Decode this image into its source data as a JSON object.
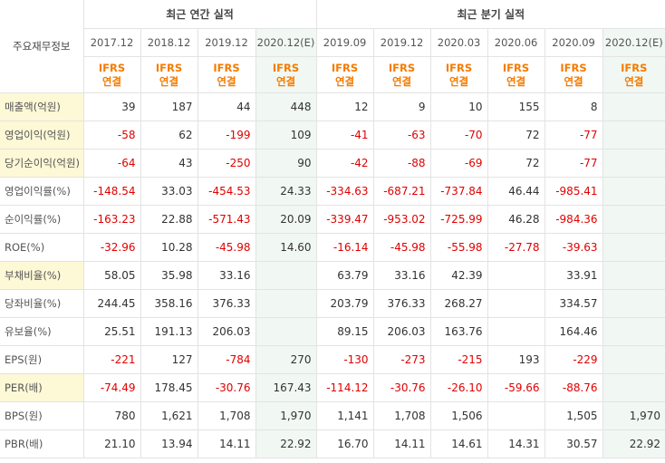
{
  "header": {
    "corner_label": "주요재무정보",
    "annual_title": "최근 연간 실적",
    "quarter_title": "최근 분기 실적",
    "periods": [
      "2017.12",
      "2018.12",
      "2019.12",
      "2020.12(E)",
      "2019.09",
      "2019.12",
      "2020.03",
      "2020.06",
      "2020.09",
      "2020.12(E)"
    ],
    "ifrs_line1": "IFRS",
    "ifrs_line2": "연결"
  },
  "rows": [
    {
      "label": "매출액(억원)",
      "highlight": true,
      "values": [
        "39",
        "187",
        "44",
        "448",
        "12",
        "9",
        "10",
        "155",
        "8",
        ""
      ]
    },
    {
      "label": "영업이익(억원)",
      "highlight": true,
      "values": [
        "-58",
        "62",
        "-199",
        "109",
        "-41",
        "-63",
        "-70",
        "72",
        "-77",
        ""
      ]
    },
    {
      "label": "당기순이익(억원)",
      "highlight": true,
      "values": [
        "-64",
        "43",
        "-250",
        "90",
        "-42",
        "-88",
        "-69",
        "72",
        "-77",
        ""
      ]
    },
    {
      "label": "영업이익률(%)",
      "highlight": false,
      "values": [
        "-148.54",
        "33.03",
        "-454.53",
        "24.33",
        "-334.63",
        "-687.21",
        "-737.84",
        "46.44",
        "-985.41",
        ""
      ]
    },
    {
      "label": "순이익률(%)",
      "highlight": false,
      "values": [
        "-163.23",
        "22.88",
        "-571.43",
        "20.09",
        "-339.47",
        "-953.02",
        "-725.99",
        "46.28",
        "-984.36",
        ""
      ]
    },
    {
      "label": "ROE(%)",
      "highlight": false,
      "values": [
        "-32.96",
        "10.28",
        "-45.98",
        "14.60",
        "-16.14",
        "-45.98",
        "-55.98",
        "-27.78",
        "-39.63",
        ""
      ]
    },
    {
      "label": "부채비율(%)",
      "highlight": true,
      "values": [
        "58.05",
        "35.98",
        "33.16",
        "",
        "63.79",
        "33.16",
        "42.39",
        "",
        "33.91",
        ""
      ]
    },
    {
      "label": "당좌비율(%)",
      "highlight": false,
      "values": [
        "244.45",
        "358.16",
        "376.33",
        "",
        "203.79",
        "376.33",
        "268.27",
        "",
        "334.57",
        ""
      ]
    },
    {
      "label": "유보율(%)",
      "highlight": false,
      "values": [
        "25.51",
        "191.13",
        "206.03",
        "",
        "89.15",
        "206.03",
        "163.76",
        "",
        "164.46",
        ""
      ]
    },
    {
      "label": "EPS(원)",
      "highlight": false,
      "values": [
        "-221",
        "127",
        "-784",
        "270",
        "-130",
        "-273",
        "-215",
        "193",
        "-229",
        ""
      ]
    },
    {
      "label": "PER(배)",
      "highlight": true,
      "values": [
        "-74.49",
        "178.45",
        "-30.76",
        "167.43",
        "-114.12",
        "-30.76",
        "-26.10",
        "-59.66",
        "-88.76",
        ""
      ]
    },
    {
      "label": "BPS(원)",
      "highlight": false,
      "values": [
        "780",
        "1,621",
        "1,708",
        "1,970",
        "1,141",
        "1,708",
        "1,506",
        "",
        "1,505",
        "1,970"
      ]
    },
    {
      "label": "PBR(배)",
      "highlight": false,
      "values": [
        "21.10",
        "13.94",
        "14.11",
        "22.92",
        "16.70",
        "14.11",
        "14.61",
        "14.31",
        "30.57",
        "22.92"
      ]
    }
  ],
  "colors": {
    "negative": "#e10000",
    "ifrs": "#f57b00",
    "estimate_bg": "#f1f8f3",
    "highlight_bg": "#fdf8d6"
  }
}
